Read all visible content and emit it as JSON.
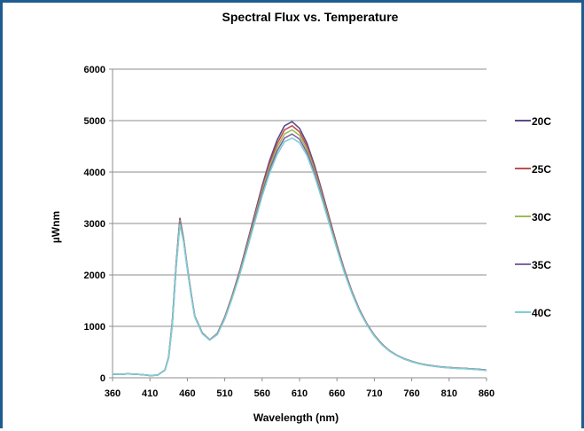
{
  "chart_data": {
    "type": "line",
    "title": "Spectral Flux vs. Temperature",
    "xlabel": "Wavelength (nm)",
    "ylabel": "µWnm",
    "xlim": [
      360,
      860
    ],
    "ylim": [
      0,
      6000
    ],
    "xticks": [
      360,
      410,
      460,
      510,
      560,
      610,
      660,
      710,
      760,
      810,
      860
    ],
    "yticks": [
      0,
      1000,
      2000,
      3000,
      4000,
      5000,
      6000
    ],
    "grid": "horizontal",
    "legend_position": "right",
    "x": [
      360,
      370,
      380,
      390,
      400,
      410,
      420,
      430,
      435,
      440,
      445,
      450,
      455,
      460,
      465,
      470,
      480,
      490,
      500,
      510,
      520,
      530,
      540,
      550,
      560,
      570,
      580,
      590,
      600,
      610,
      620,
      630,
      640,
      650,
      660,
      670,
      680,
      690,
      700,
      710,
      720,
      730,
      740,
      750,
      760,
      770,
      780,
      790,
      800,
      810,
      820,
      830,
      840,
      850,
      860
    ],
    "series": [
      {
        "name": "20C",
        "color": "#5b4a8a",
        "values": [
          70,
          65,
          75,
          70,
          60,
          45,
          50,
          150,
          400,
          1100,
          2200,
          3100,
          2700,
          2150,
          1650,
          1200,
          870,
          740,
          860,
          1180,
          1600,
          2080,
          2620,
          3180,
          3730,
          4220,
          4620,
          4900,
          4980,
          4850,
          4560,
          4130,
          3630,
          3100,
          2580,
          2100,
          1680,
          1330,
          1050,
          830,
          660,
          530,
          440,
          370,
          320,
          280,
          250,
          230,
          210,
          200,
          190,
          185,
          175,
          165,
          150
        ]
      },
      {
        "name": "25C",
        "color": "#c0504d",
        "values": [
          70,
          65,
          75,
          70,
          60,
          45,
          50,
          150,
          400,
          1080,
          2180,
          3080,
          2690,
          2140,
          1640,
          1195,
          865,
          738,
          855,
          1170,
          1590,
          2060,
          2590,
          3140,
          3680,
          4160,
          4550,
          4820,
          4900,
          4780,
          4500,
          4080,
          3590,
          3070,
          2560,
          2085,
          1670,
          1320,
          1045,
          825,
          656,
          528,
          438,
          368,
          318,
          278,
          248,
          228,
          209,
          199,
          189,
          183,
          173,
          163,
          148
        ]
      },
      {
        "name": "30C",
        "color": "#9bbb59",
        "values": [
          70,
          65,
          75,
          70,
          60,
          45,
          50,
          148,
          395,
          1065,
          2160,
          3050,
          2675,
          2130,
          1630,
          1190,
          862,
          736,
          850,
          1160,
          1575,
          2040,
          2560,
          3100,
          3630,
          4100,
          4480,
          4740,
          4820,
          4710,
          4440,
          4030,
          3550,
          3040,
          2540,
          2070,
          1660,
          1312,
          1040,
          820,
          652,
          525,
          436,
          366,
          316,
          276,
          246,
          226,
          207,
          197,
          187,
          181,
          171,
          161,
          146
        ]
      },
      {
        "name": "35C",
        "color": "#8064a2",
        "values": [
          70,
          65,
          75,
          70,
          60,
          45,
          50,
          146,
          390,
          1050,
          2140,
          3020,
          2660,
          2120,
          1620,
          1185,
          858,
          734,
          845,
          1150,
          1560,
          2020,
          2530,
          3060,
          3580,
          4040,
          4410,
          4660,
          4740,
          4640,
          4380,
          3980,
          3510,
          3010,
          2520,
          2055,
          1650,
          1305,
          1035,
          815,
          648,
          522,
          434,
          364,
          314,
          274,
          244,
          224,
          205,
          195,
          185,
          179,
          169,
          159,
          144
        ]
      },
      {
        "name": "40C",
        "color": "#7ecfd8",
        "values": [
          70,
          65,
          75,
          70,
          60,
          45,
          50,
          144,
          385,
          1035,
          2120,
          2980,
          2645,
          2110,
          1610,
          1180,
          855,
          732,
          840,
          1140,
          1545,
          2000,
          2500,
          3020,
          3530,
          3980,
          4340,
          4590,
          4660,
          4570,
          4320,
          3930,
          3470,
          2980,
          2500,
          2040,
          1640,
          1298,
          1030,
          810,
          644,
          519,
          432,
          362,
          312,
          272,
          242,
          222,
          203,
          193,
          183,
          177,
          167,
          157,
          142
        ]
      }
    ]
  }
}
